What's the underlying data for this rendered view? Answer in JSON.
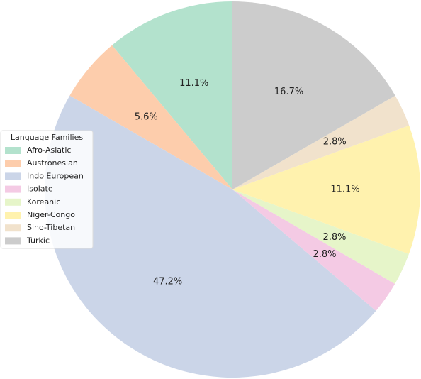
{
  "chart_data": {
    "type": "pie",
    "legend_title": "Language Families",
    "categories": [
      "Afro-Asiatic",
      "Austronesian",
      "Indo European",
      "Isolate",
      "Koreanic",
      "Niger-Congo",
      "Sino-Tibetan",
      "Turkic"
    ],
    "values": [
      11.1,
      5.6,
      47.2,
      2.8,
      2.8,
      11.1,
      2.8,
      16.7
    ],
    "value_labels": [
      "11.1%",
      "5.6%",
      "47.2%",
      "2.8%",
      "2.8%",
      "11.1%",
      "2.8%",
      "16.7%"
    ],
    "colors": [
      "#b3e2cd",
      "#fdcdac",
      "#cbd5e8",
      "#f4cae4",
      "#e6f5c9",
      "#fff2ae",
      "#f1e2cc",
      "#cccccc"
    ],
    "legend": "center left"
  }
}
